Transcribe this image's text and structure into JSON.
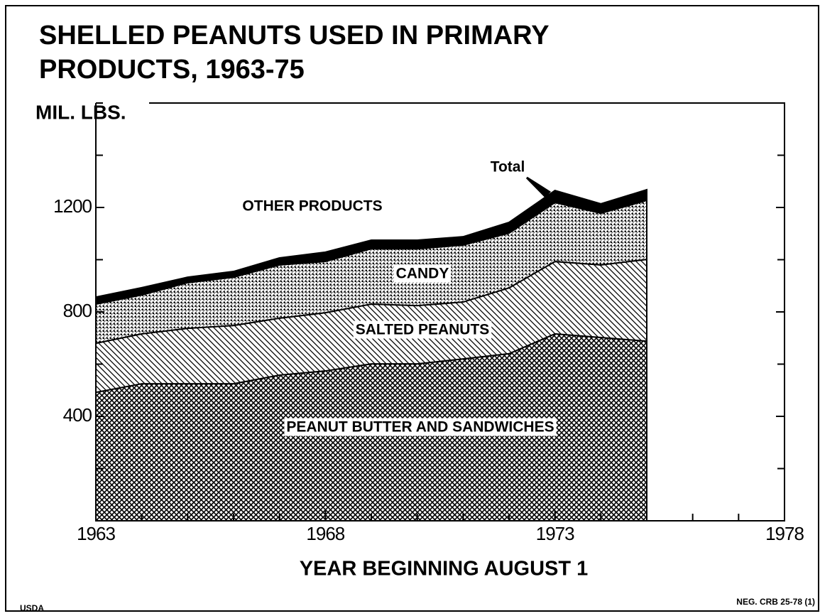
{
  "chart_data": {
    "type": "stacked_area",
    "title": [
      "SHELLED PEANUTS USED IN PRIMARY",
      "PRODUCTS, 1963-75"
    ],
    "y_label": "MIL. LBS.",
    "x_label": "YEAR BEGINNING AUGUST 1",
    "annotation": "Total",
    "source": "USDA",
    "reference": "NEG. CRB 25-78 (1)",
    "x": [
      1963,
      1964,
      1965,
      1966,
      1967,
      1968,
      1969,
      1970,
      1971,
      1972,
      1973,
      1974,
      1975
    ],
    "series": [
      {
        "name": "PEANUT BUTTER AND SANDWICHES",
        "color": "#000000",
        "pattern": "crosshatch",
        "values": [
          492,
          525,
          525,
          525,
          558,
          574,
          601,
          601,
          620,
          640,
          716,
          702,
          688
        ]
      },
      {
        "name": "SALTED PEANUTS",
        "color": "#000000",
        "pattern": "hatch",
        "values": [
          188,
          191,
          212,
          223,
          218,
          223,
          229,
          223,
          218,
          252,
          277,
          278,
          313
        ]
      },
      {
        "name": "CANDY",
        "color": "#000000",
        "pattern": "dots",
        "values": [
          150,
          149,
          175,
          185,
          204,
          196,
          212,
          218,
          218,
          210,
          226,
          198,
          226
        ]
      },
      {
        "name": "OTHER PRODUCTS",
        "color": "#000000",
        "pattern": "solid",
        "values": [
          27,
          28,
          21,
          22,
          27,
          36,
          33,
          33,
          32,
          41,
          46,
          36,
          41
        ]
      }
    ],
    "xlim": [
      1963,
      1978
    ],
    "xticks": [
      1963,
      1968,
      1973,
      1978
    ],
    "xticks_minor": [
      1964,
      1965,
      1966,
      1967,
      1969,
      1970,
      1971,
      1972,
      1974,
      1975,
      1976,
      1977
    ],
    "ylim": [
      0,
      1600
    ],
    "yticks": [
      400,
      800,
      1200
    ],
    "yticks_minor": [
      200,
      600,
      1000,
      1400,
      1600
    ]
  }
}
